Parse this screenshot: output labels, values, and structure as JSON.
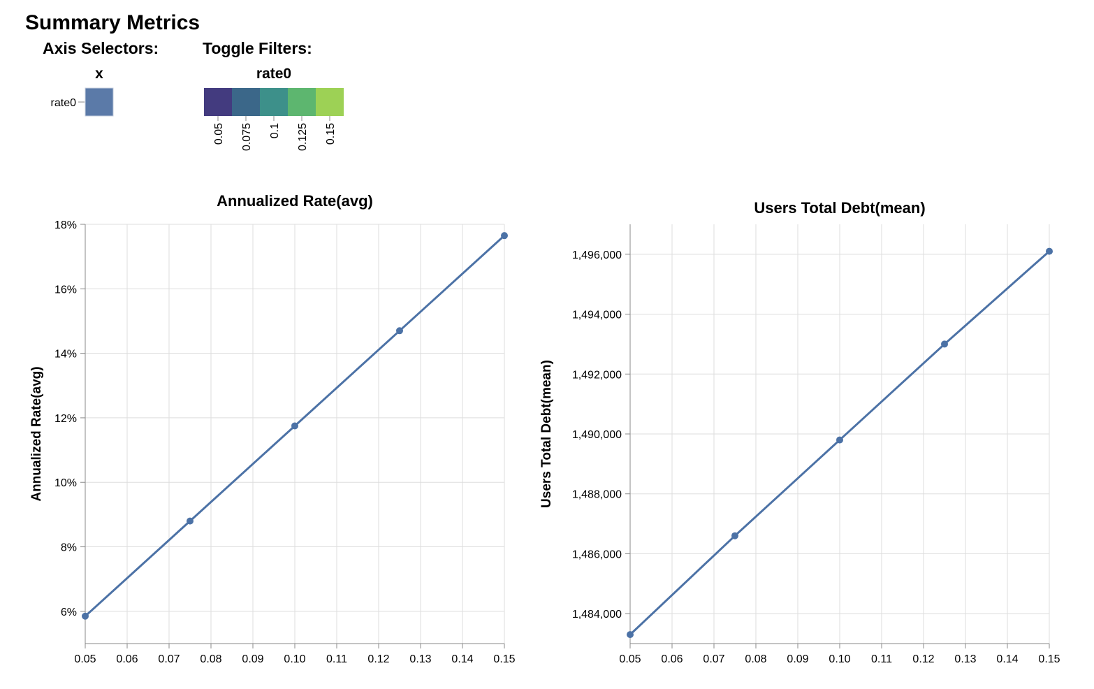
{
  "page": {
    "title": "Summary Metrics"
  },
  "selectors": {
    "axis_header": "Axis Selectors:",
    "axis_column": "x",
    "axis_row": "rate0",
    "axis_cell_color": "#5b7aa8",
    "toggle_header": "Toggle Filters:",
    "toggle_column": "rate0",
    "toggle_ticks": [
      "0.05",
      "0.075",
      "0.1",
      "0.125",
      "0.15"
    ],
    "toggle_colors": [
      "#433b7f",
      "#3b6789",
      "#3d908a",
      "#5db66f",
      "#9dd155"
    ]
  },
  "colors": {
    "series": "#4c72a6",
    "grid": "#dddddd",
    "axis": "#888888"
  },
  "chart_data": [
    {
      "type": "line",
      "title": "Annualized Rate(avg)",
      "xlabel": "",
      "ylabel": "Annualized Rate(avg)",
      "x": [
        0.05,
        0.075,
        0.1,
        0.125,
        0.15
      ],
      "series": [
        {
          "values": [
            5.85,
            8.8,
            11.75,
            14.7,
            17.65
          ]
        }
      ],
      "xlim": [
        0.05,
        0.15
      ],
      "ylim": [
        5,
        18
      ],
      "x_ticks": [
        "0.05",
        "0.06",
        "0.07",
        "0.08",
        "0.09",
        "0.10",
        "0.11",
        "0.12",
        "0.13",
        "0.14",
        "0.15"
      ],
      "y_ticks": [
        "6%",
        "8%",
        "10%",
        "12%",
        "14%",
        "16%",
        "18%"
      ],
      "grid": true
    },
    {
      "type": "line",
      "title": "Users Total Debt(mean)",
      "xlabel": "",
      "ylabel": "Users Total Debt(mean)",
      "x": [
        0.05,
        0.075,
        0.1,
        0.125,
        0.15
      ],
      "series": [
        {
          "values": [
            1483300,
            1486600,
            1489800,
            1493000,
            1496100
          ]
        }
      ],
      "xlim": [
        0.05,
        0.15
      ],
      "ylim": [
        1483000,
        1497000
      ],
      "x_ticks": [
        "0.05",
        "0.06",
        "0.07",
        "0.08",
        "0.09",
        "0.10",
        "0.11",
        "0.12",
        "0.13",
        "0.14",
        "0.15"
      ],
      "y_ticks": [
        "1,484,000",
        "1,486,000",
        "1,488,000",
        "1,490,000",
        "1,492,000",
        "1,494,000",
        "1,496,000"
      ],
      "grid": true
    }
  ]
}
